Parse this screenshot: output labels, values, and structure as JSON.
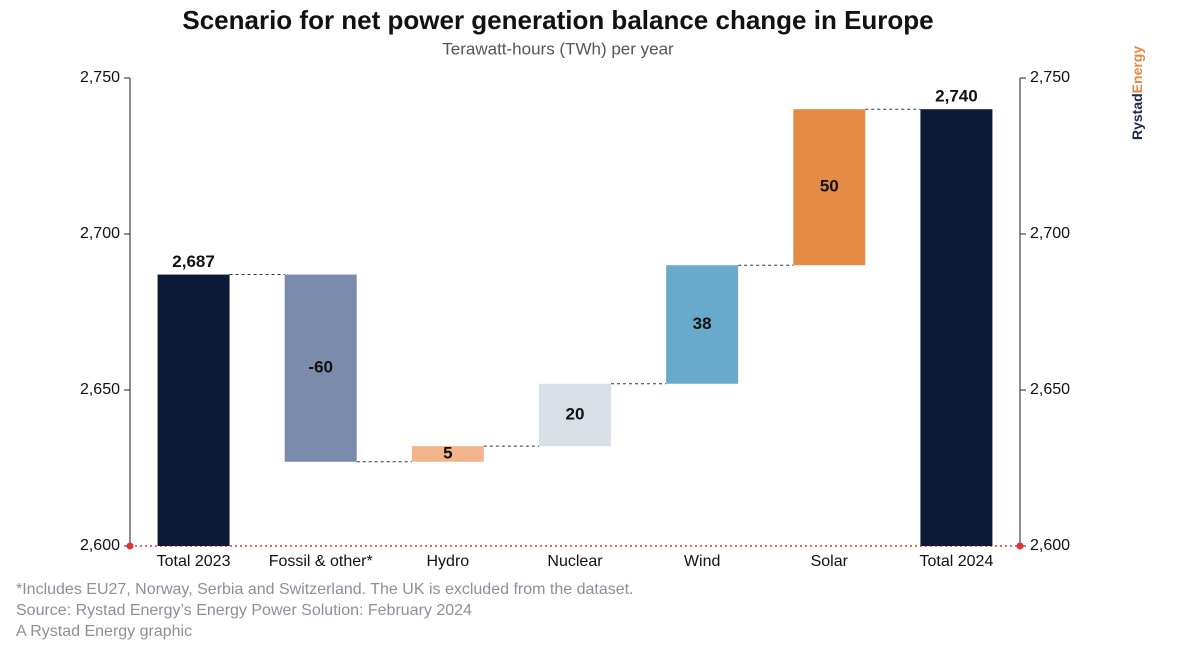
{
  "chart_data": {
    "type": "waterfall",
    "title": "Scenario for net power generation balance change in Europe",
    "subtitle": "Terawatt-hours (TWh) per year",
    "categories": [
      "Total 2023",
      "Fossil & other*",
      "Hydro",
      "Nuclear",
      "Wind",
      "Solar",
      "Total 2024"
    ],
    "measure": [
      "absolute",
      "relative",
      "relative",
      "relative",
      "relative",
      "relative",
      "absolute"
    ],
    "values": [
      2687,
      -60,
      5,
      20,
      38,
      50,
      2740
    ],
    "value_labels": [
      "2,687",
      "-60",
      "5",
      "20",
      "38",
      "50",
      "2,740"
    ],
    "colors": [
      "#0b1a36",
      "#7b8bab",
      "#f2b48a",
      "#d8dfe7",
      "#68a9cc",
      "#e38a44",
      "#0b1a36"
    ],
    "ylim": [
      2600,
      2750
    ],
    "yticks": [
      {
        "value": 2600,
        "label": "2,600"
      },
      {
        "value": 2650,
        "label": "2,650"
      },
      {
        "value": 2700,
        "label": "2,700"
      },
      {
        "value": 2750,
        "label": "2,750"
      }
    ],
    "y2lim": [
      2600,
      2750
    ],
    "y2ticks": [
      {
        "value": 2600,
        "label": "2,600"
      },
      {
        "value": 2650,
        "label": "2,650"
      },
      {
        "value": 2700,
        "label": "2,700"
      },
      {
        "value": 2750,
        "label": "2,750"
      }
    ],
    "footnotes": [
      "*Includes EU27, Norway, Serbia and Switzerland. The UK is excluded from the dataset.",
      "Source: Rystad Energy’s Energy Power Solution: February 2024",
      "A Rystad Energy graphic"
    ],
    "logo": [
      "Rystad",
      "Energy"
    ]
  }
}
